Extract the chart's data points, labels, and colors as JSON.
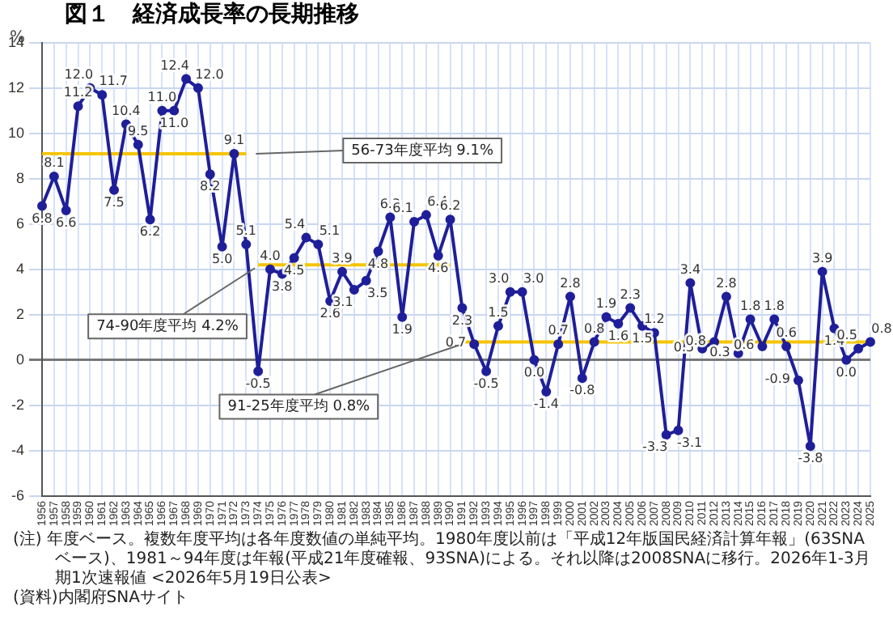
{
  "chart_data": {
    "type": "line",
    "title": "図１　経済成長率の長期推移",
    "ylabel": "%",
    "categories": [
      "1956",
      "1957",
      "1958",
      "1959",
      "1960",
      "1961",
      "1962",
      "1963",
      "1964",
      "1965",
      "1966",
      "1967",
      "1968",
      "1969",
      "1970",
      "1971",
      "1972",
      "1973",
      "1974",
      "1975",
      "1976",
      "1977",
      "1978",
      "1979",
      "1980",
      "1981",
      "1982",
      "1983",
      "1984",
      "1985",
      "1986",
      "1987",
      "1988",
      "1989",
      "1990",
      "1991",
      "1992",
      "1993",
      "1994",
      "1995",
      "1996",
      "1997",
      "1998",
      "1999",
      "2000",
      "2001",
      "2002",
      "2003",
      "2004",
      "2005",
      "2006",
      "2007",
      "2008",
      "2009",
      "2010",
      "2011",
      "2012",
      "2013",
      "2014",
      "2015",
      "2016",
      "2017",
      "2018",
      "2019",
      "2020",
      "2021",
      "2022",
      "2023",
      "2024",
      "2025"
    ],
    "series": [
      {
        "color": "#1f1f9a",
        "values": [
          6.8,
          8.1,
          6.6,
          11.2,
          12.0,
          11.7,
          7.5,
          10.4,
          9.5,
          6.2,
          11.0,
          11.0,
          12.4,
          12.0,
          8.2,
          5.0,
          9.1,
          5.1,
          -0.5,
          4.0,
          3.8,
          4.5,
          5.4,
          5.1,
          2.6,
          3.9,
          3.1,
          3.5,
          4.8,
          6.3,
          1.9,
          6.1,
          6.4,
          4.6,
          6.2,
          2.3,
          0.7,
          -0.5,
          1.5,
          3.0,
          3.0,
          0.0,
          -1.4,
          0.7,
          2.8,
          -0.8,
          0.8,
          1.9,
          1.6,
          2.3,
          1.5,
          1.2,
          -3.3,
          -3.1,
          3.4,
          0.5,
          0.8,
          2.8,
          0.3,
          1.8,
          0.6,
          1.8,
          0.6,
          -0.9,
          -3.8,
          3.9,
          1.4,
          0.0,
          0.5,
          0.8
        ],
        "value_labels": [
          "6.8",
          "8.1",
          "6.6",
          "11.2",
          "12.0",
          "11.7",
          "7.5",
          "10.4",
          "9.5",
          "6.2",
          "11.0",
          "11.0",
          "12.4",
          "12.0",
          "8.2",
          "5.0",
          "9.1",
          "5.1",
          "-0.5",
          "4.0",
          "3.8",
          "4.5",
          "5.4",
          "5.1",
          "2.6",
          "3.9",
          "3.1",
          "3.5",
          "4.8",
          "6.3",
          "1.9",
          "6.1",
          "6.4",
          "4.6",
          "6.2",
          "2.3",
          "0.7",
          "-0.5",
          "1.5",
          "3.0",
          "3.0",
          "0.0",
          "-1.4",
          "0.7",
          "2.8",
          "-0.8",
          "0.8",
          "1.9",
          "1.6",
          "2.3",
          "1.5",
          "1.2",
          "-3.3",
          "-3.1",
          "3.4",
          "0.5",
          "0.8",
          "2.8",
          "0.3",
          "1.8",
          "0.6",
          "1.8",
          "0.6",
          "-0.9",
          "-3.8",
          "3.9",
          "1.4",
          "0.0",
          "0.5",
          "0.8"
        ]
      },
      {
        "name": "56-73年度平均 9.1%",
        "color": "#f5c400",
        "marker": "none",
        "values": [
          9.1,
          9.1,
          9.1,
          9.1,
          9.1,
          9.1,
          9.1,
          9.1,
          9.1,
          9.1,
          9.1,
          9.1,
          9.1,
          9.1,
          9.1,
          9.1,
          9.1,
          9.1,
          null,
          null,
          null,
          null,
          null,
          null,
          null,
          null,
          null,
          null,
          null,
          null,
          null,
          null,
          null,
          null,
          null,
          null,
          null,
          null,
          null,
          null,
          null,
          null,
          null,
          null,
          null,
          null,
          null,
          null,
          null,
          null,
          null,
          null,
          null,
          null,
          null,
          null,
          null,
          null,
          null,
          null,
          null,
          null,
          null,
          null,
          null,
          null,
          null,
          null,
          null,
          null
        ]
      },
      {
        "name": "74-90年度平均 4.2%",
        "color": "#f5c400",
        "marker": "none",
        "values": [
          null,
          null,
          null,
          null,
          null,
          null,
          null,
          null,
          null,
          null,
          null,
          null,
          null,
          null,
          null,
          null,
          null,
          null,
          4.2,
          4.2,
          4.2,
          4.2,
          4.2,
          4.2,
          4.2,
          4.2,
          4.2,
          4.2,
          4.2,
          4.2,
          4.2,
          4.2,
          4.2,
          4.2,
          4.2,
          null,
          null,
          null,
          null,
          null,
          null,
          null,
          null,
          null,
          null,
          null,
          null,
          null,
          null,
          null,
          null,
          null,
          null,
          null,
          null,
          null,
          null,
          null,
          null,
          null,
          null,
          null,
          null,
          null,
          null,
          null,
          null,
          null,
          null,
          null
        ]
      },
      {
        "name": "91-25年度平均 0.8%",
        "color": "#f5c400",
        "marker": "none",
        "values": [
          null,
          null,
          null,
          null,
          null,
          null,
          null,
          null,
          null,
          null,
          null,
          null,
          null,
          null,
          null,
          null,
          null,
          null,
          null,
          null,
          null,
          null,
          null,
          null,
          null,
          null,
          null,
          null,
          null,
          null,
          null,
          null,
          null,
          null,
          null,
          0.8,
          0.8,
          0.8,
          0.8,
          0.8,
          0.8,
          0.8,
          0.8,
          0.8,
          0.8,
          0.8,
          0.8,
          0.8,
          0.8,
          0.8,
          0.8,
          0.8,
          0.8,
          0.8,
          0.8,
          0.8,
          0.8,
          0.8,
          0.8,
          0.8,
          0.8,
          0.8,
          0.8,
          0.8,
          0.8,
          0.8,
          0.8,
          0.8,
          0.8,
          0.8
        ]
      }
    ],
    "ylim": [
      -6,
      14
    ],
    "yticks": [
      -6,
      -4,
      -2,
      0,
      2,
      4,
      6,
      8,
      10,
      12,
      14
    ],
    "grid": true,
    "legend": false,
    "marker": "circle",
    "line_style": "solid",
    "annotations": [
      "(注) 年度ベース。複数年度平均は各年度数値の単純平均。1980年度以前は「平成12年版国民経済計算年報」(63SNAベース)、1981～94年度は年報(平成21年度確報、93SNA)による。それ以降は2008SNAに移行。2026年1-3月期1次速報値 <2026年5月19日公表>",
      "(資料)内閣府SNAサイト"
    ]
  }
}
